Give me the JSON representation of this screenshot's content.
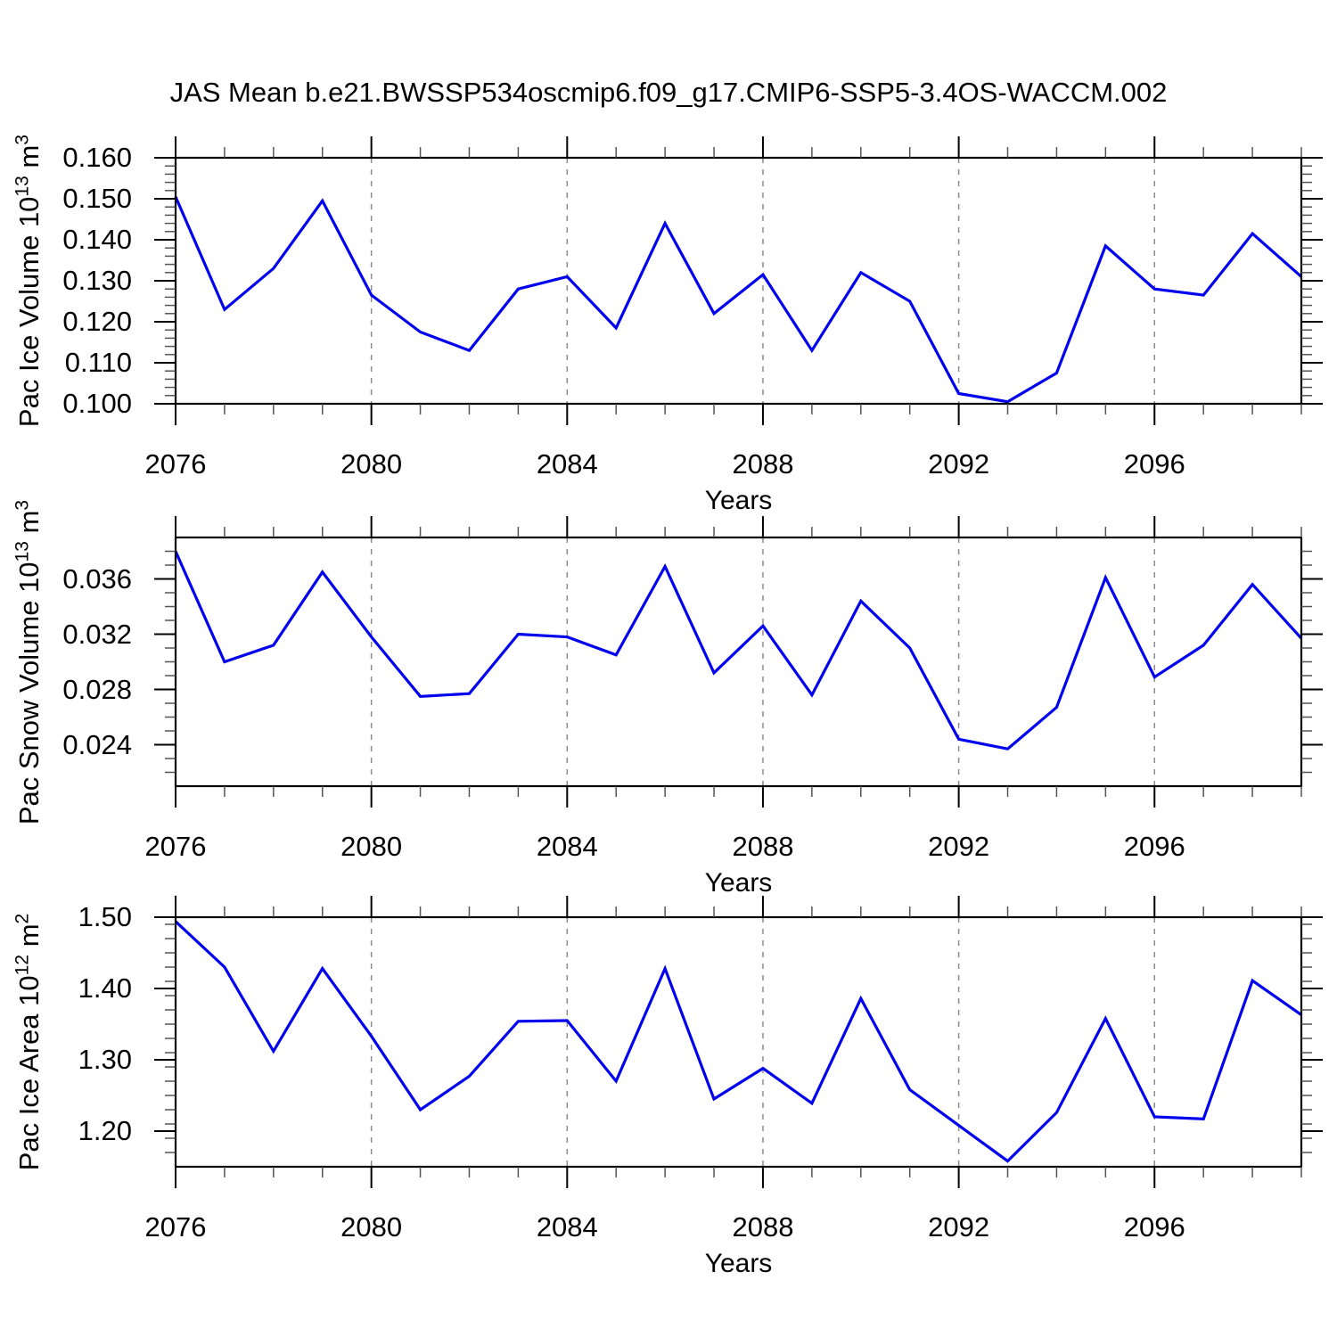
{
  "title": "JAS Mean b.e21.BWSSP534oscmip6.f09_g17.CMIP6-SSP5-3.4OS-WACCM.002",
  "colors": {
    "line": "#0000EE",
    "frame": "#000000",
    "minor_tick": "#555555",
    "grid": "#8C8C8C",
    "text": "#000000",
    "background": "#FFFFFF"
  },
  "x_axis": {
    "label": "Years",
    "range": [
      2076,
      2099
    ],
    "years": [
      2076,
      2077,
      2078,
      2079,
      2080,
      2081,
      2082,
      2083,
      2084,
      2085,
      2086,
      2087,
      2088,
      2089,
      2090,
      2091,
      2092,
      2093,
      2094,
      2095,
      2096,
      2097,
      2098,
      2099
    ],
    "major_ticks": [
      2076,
      2080,
      2084,
      2088,
      2092,
      2096
    ],
    "tick_labels": [
      "2076",
      "2080",
      "2084",
      "2088",
      "2092",
      "2096"
    ],
    "minor_step": 1,
    "gridlines": [
      2080,
      2084,
      2088,
      2092,
      2096
    ],
    "grid_style": "dashed"
  },
  "chart_data": [
    {
      "type": "line",
      "ylabel": "Pac Ice Volume 10^13 m^3",
      "ylabel_parts": {
        "base": "Pac Ice Volume 10",
        "exp": "13",
        "unit": " m",
        "unit_exp": "3"
      },
      "ylim": [
        0.1,
        0.16
      ],
      "ytick_values": [
        0.1,
        0.11,
        0.12,
        0.13,
        0.14,
        0.15,
        0.16
      ],
      "ytick_labels": [
        "0.100",
        "0.110",
        "0.120",
        "0.130",
        "0.140",
        "0.150",
        "0.160"
      ],
      "yminor_step": 0.002,
      "values": [
        0.1505,
        0.123,
        0.133,
        0.1495,
        0.1265,
        0.1175,
        0.113,
        0.128,
        0.131,
        0.1185,
        0.144,
        0.122,
        0.1315,
        0.113,
        0.132,
        0.125,
        0.1025,
        0.1005,
        0.1075,
        0.1385,
        0.128,
        0.1265,
        0.1415,
        0.131
      ]
    },
    {
      "type": "line",
      "ylabel": "Pac Snow Volume 10^13 m^3",
      "ylabel_parts": {
        "base": "Pac Snow Volume 10",
        "exp": "13",
        "unit": " m",
        "unit_exp": "3"
      },
      "ylim": [
        0.021,
        0.039
      ],
      "ytick_values": [
        0.024,
        0.028,
        0.032,
        0.036
      ],
      "ytick_labels": [
        "0.024",
        "0.028",
        "0.032",
        "0.036"
      ],
      "yminor_step": 0.001,
      "values": [
        0.038,
        0.03,
        0.0312,
        0.0365,
        0.0318,
        0.0275,
        0.0277,
        0.032,
        0.0318,
        0.0305,
        0.0369,
        0.0292,
        0.0326,
        0.0276,
        0.0344,
        0.031,
        0.0244,
        0.0237,
        0.0267,
        0.0361,
        0.0289,
        0.0312,
        0.0356,
        0.0317
      ]
    },
    {
      "type": "line",
      "ylabel": "Pac Ice Area 10^12 m^2",
      "ylabel_parts": {
        "base": "Pac Ice Area 10",
        "exp": "12",
        "unit": " m",
        "unit_exp": "2"
      },
      "ylim": [
        1.15,
        1.5
      ],
      "ytick_values": [
        1.2,
        1.3,
        1.4,
        1.5
      ],
      "ytick_labels": [
        "1.20",
        "1.30",
        "1.40",
        "1.50"
      ],
      "yminor_step": 0.02,
      "values": [
        1.494,
        1.43,
        1.312,
        1.428,
        1.333,
        1.23,
        1.277,
        1.354,
        1.355,
        1.27,
        1.428,
        1.245,
        1.288,
        1.239,
        1.386,
        1.258,
        1.208,
        1.158,
        1.226,
        1.358,
        1.22,
        1.217,
        1.411,
        1.363
      ]
    }
  ]
}
